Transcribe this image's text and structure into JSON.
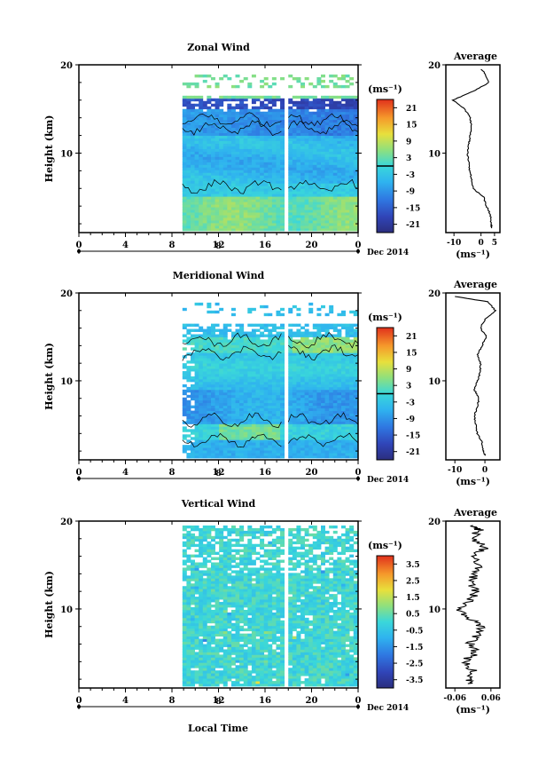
{
  "figure": {
    "x_axis_title": "Local Time",
    "date_label": "Dec 2014",
    "day_label": "8",
    "x_ticks": [
      "0",
      "4",
      "8",
      "12",
      "16",
      "20",
      "0"
    ],
    "height_ticks": [
      "20",
      "10"
    ],
    "height_axis_title": "Height (km)",
    "average_title": "Average",
    "unit_label": "(ms⁻¹)"
  },
  "chart_data": [
    {
      "type": "heatmap",
      "title": "Zonal Wind",
      "xlabel": "",
      "ylabel": "Height (km)",
      "xlim": [
        0,
        24
      ],
      "ylim": [
        1,
        20
      ],
      "data_time_range": [
        8.9,
        24
      ],
      "data_gap": [
        17.4,
        18.0
      ],
      "colorbar_label": "(ms⁻¹)",
      "colorbar_ticks": [
        "21",
        "15",
        "9",
        "3",
        "-3",
        "-9",
        "-15",
        "-21"
      ],
      "colorbar_range": [
        -24,
        24
      ],
      "profile": {
        "title": "Average",
        "xlabel": "(ms⁻¹)",
        "xticks": [
          "-10",
          "0",
          "5"
        ],
        "xlim": [
          -13,
          7
        ],
        "heights": [
          1.5,
          2,
          3,
          4,
          5,
          6,
          7,
          8,
          9,
          10,
          11,
          12,
          13,
          14,
          15,
          16,
          17,
          18,
          19,
          19.5
        ],
        "values": [
          4,
          3.8,
          3.5,
          2,
          1,
          -3,
          -3.5,
          -4.2,
          -4.5,
          -5,
          -4.5,
          -4,
          -3.5,
          -4,
          -6,
          -10.5,
          -3,
          3,
          1.5,
          0
        ]
      }
    },
    {
      "type": "heatmap",
      "title": "Meridional Wind",
      "xlabel": "",
      "ylabel": "Height (km)",
      "xlim": [
        0,
        24
      ],
      "ylim": [
        1,
        20
      ],
      "data_time_range": [
        8.9,
        24
      ],
      "data_gap": [
        17.4,
        18.0
      ],
      "colorbar_label": "(ms⁻¹)",
      "colorbar_ticks": [
        "21",
        "15",
        "9",
        "3",
        "-3",
        "-9",
        "-15",
        "-21"
      ],
      "colorbar_range": [
        -24,
        24
      ],
      "profile": {
        "title": "Average",
        "xlabel": "(ms⁻¹)",
        "xticks": [
          "-10",
          "0"
        ],
        "xlim": [
          -13,
          5
        ],
        "heights": [
          1.5,
          2,
          3,
          4,
          5,
          6,
          7,
          8,
          9,
          10,
          11,
          12,
          13,
          14,
          15,
          16,
          17,
          18,
          19,
          19.6
        ],
        "values": [
          0,
          -0.5,
          -1,
          -2.5,
          -3,
          -3.5,
          -2.5,
          -2,
          -3.5,
          -2.5,
          -1.5,
          -1.5,
          -2.5,
          -1,
          0.5,
          -1.5,
          0,
          3.5,
          1,
          -10
        ]
      }
    },
    {
      "type": "heatmap",
      "title": "Vertical Wind",
      "xlabel": "Local Time",
      "ylabel": "Height (km)",
      "xlim": [
        0,
        24
      ],
      "ylim": [
        1,
        20
      ],
      "data_time_range": [
        8.9,
        24
      ],
      "data_gap": [
        17.4,
        18.0
      ],
      "colorbar_label": "(ms⁻¹)",
      "colorbar_ticks": [
        "3.5",
        "2.5",
        "1.5",
        "0.5",
        "-0.5",
        "-1.5",
        "-2.5",
        "-3.5"
      ],
      "colorbar_range": [
        -4,
        4
      ],
      "profile": {
        "title": "Average",
        "xlabel": "(ms⁻¹)",
        "xticks": [
          "-0.06",
          "0.06"
        ],
        "xlim": [
          -0.09,
          0.09
        ],
        "heights": [
          1.5,
          2,
          3,
          4,
          5,
          6,
          7,
          8,
          9,
          10,
          11,
          12,
          13,
          14,
          15,
          16,
          17,
          18,
          19,
          19.5
        ],
        "values": [
          -0.01,
          -0.02,
          0.0,
          -0.03,
          0.01,
          -0.01,
          0.01,
          0.03,
          -0.01,
          -0.05,
          -0.01,
          0.01,
          -0.01,
          0.01,
          0.02,
          0.0,
          0.04,
          0.0,
          0.02,
          0.0
        ]
      }
    }
  ]
}
